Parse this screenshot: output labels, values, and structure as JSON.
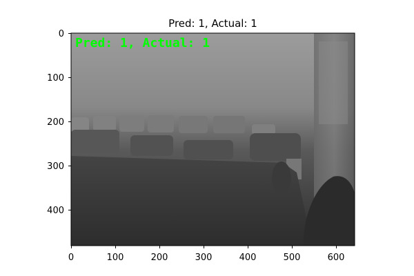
{
  "figure": {
    "title": "Pred: 1, Actual: 1"
  },
  "image": {
    "overlay_text": "Pred: 1, Actual: 1",
    "overlay_color": "#00ff00",
    "description_colors": {
      "background_top": "#9a9a9a",
      "background_bottom": "#2f2f2f"
    }
  },
  "axes": {
    "x_ticks": [
      "0",
      "100",
      "200",
      "300",
      "400",
      "500",
      "600"
    ],
    "y_ticks": [
      "0",
      "100",
      "200",
      "300",
      "400"
    ],
    "x_range": [
      0,
      640
    ],
    "y_range": [
      480,
      0
    ]
  }
}
